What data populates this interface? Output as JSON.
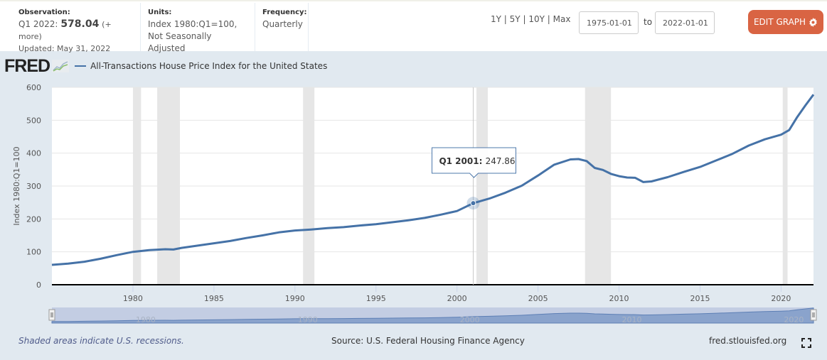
{
  "header": {
    "observation_label": "Observation:",
    "observation_period": "Q1 2022:",
    "observation_value": "578.04",
    "observation_more": "(+ more)",
    "updated": "Updated: May 31, 2022",
    "units_label": "Units:",
    "units_line1": "Index 1980:Q1=100,",
    "units_line2": "Not Seasonally Adjusted",
    "frequency_label": "Frequency:",
    "frequency_value": "Quarterly",
    "range_links": [
      "1Y",
      "5Y",
      "10Y",
      "Max"
    ],
    "range_separator": "|",
    "date_from": "1975-01-01",
    "date_to_label": "to",
    "date_to": "2022-01-01",
    "edit_button_label": "EDIT GRAPH",
    "edit_button_icon": "gear-icon",
    "edit_button_color": "#d96443"
  },
  "brand": {
    "logo_text": "FRED",
    "logo_icon": "line-chart-icon"
  },
  "footer": {
    "recession_note": "Shaded areas indicate U.S. recessions.",
    "source": "Source: U.S. Federal Housing Finance Agency",
    "site": "fred.stlouisfed.org",
    "fullscreen_icon": "fullscreen-icon"
  },
  "chart_data": {
    "type": "line",
    "title": "All-Transactions House Price Index for the United States",
    "xlabel": "",
    "ylabel": "Index 1980:Q1=100",
    "xlim": [
      1975.0,
      2022.0
    ],
    "ylim": [
      0,
      600
    ],
    "yticks": [
      0,
      100,
      200,
      300,
      400,
      500,
      600
    ],
    "xticks": [
      1980,
      1985,
      1990,
      1995,
      2000,
      2005,
      2010,
      2015,
      2020
    ],
    "navigator_ticks": [
      1980,
      1990,
      2000,
      2010,
      2020
    ],
    "grid": true,
    "legend_position": "top-left",
    "series": [
      {
        "name": "All-Transactions House Price Index for the United States",
        "color": "#4572a7",
        "x": [
          1975,
          1976,
          1977,
          1978,
          1979,
          1980,
          1981,
          1982,
          1982.5,
          1983,
          1984,
          1985,
          1986,
          1987,
          1988,
          1989,
          1990,
          1991,
          1992,
          1993,
          1994,
          1995,
          1996,
          1997,
          1998,
          1999,
          2000,
          2001,
          2002,
          2003,
          2004,
          2005,
          2006,
          2007,
          2007.5,
          2008,
          2008.5,
          2009,
          2009.5,
          2010,
          2010.5,
          2011,
          2011.5,
          2012,
          2013,
          2014,
          2015,
          2016,
          2017,
          2018,
          2019,
          2020,
          2020.5,
          2021,
          2021.5,
          2022
        ],
        "values": [
          60.5,
          64,
          70,
          79,
          90,
          100,
          105,
          108,
          107,
          112,
          119,
          126,
          133,
          142,
          150,
          159,
          165,
          168,
          172,
          175,
          180,
          184,
          190,
          196,
          203,
          213,
          224,
          247.86,
          262,
          280,
          301,
          332,
          365,
          381,
          382,
          376,
          355,
          349,
          337,
          330,
          326,
          325,
          312,
          314,
          327,
          343,
          358,
          378,
          398,
          423,
          442,
          456,
          470,
          510,
          545,
          578.04
        ]
      }
    ],
    "recessions": [
      [
        1980.0,
        1980.5
      ],
      [
        1981.5,
        1982.9
      ],
      [
        1990.5,
        1991.2
      ],
      [
        2001.2,
        2001.9
      ],
      [
        2007.9,
        2009.5
      ],
      [
        2020.1,
        2020.4
      ]
    ],
    "tooltip": {
      "label": "Q1 2001:",
      "value": "247.86",
      "x": 2001.0,
      "y": 247.86
    }
  }
}
